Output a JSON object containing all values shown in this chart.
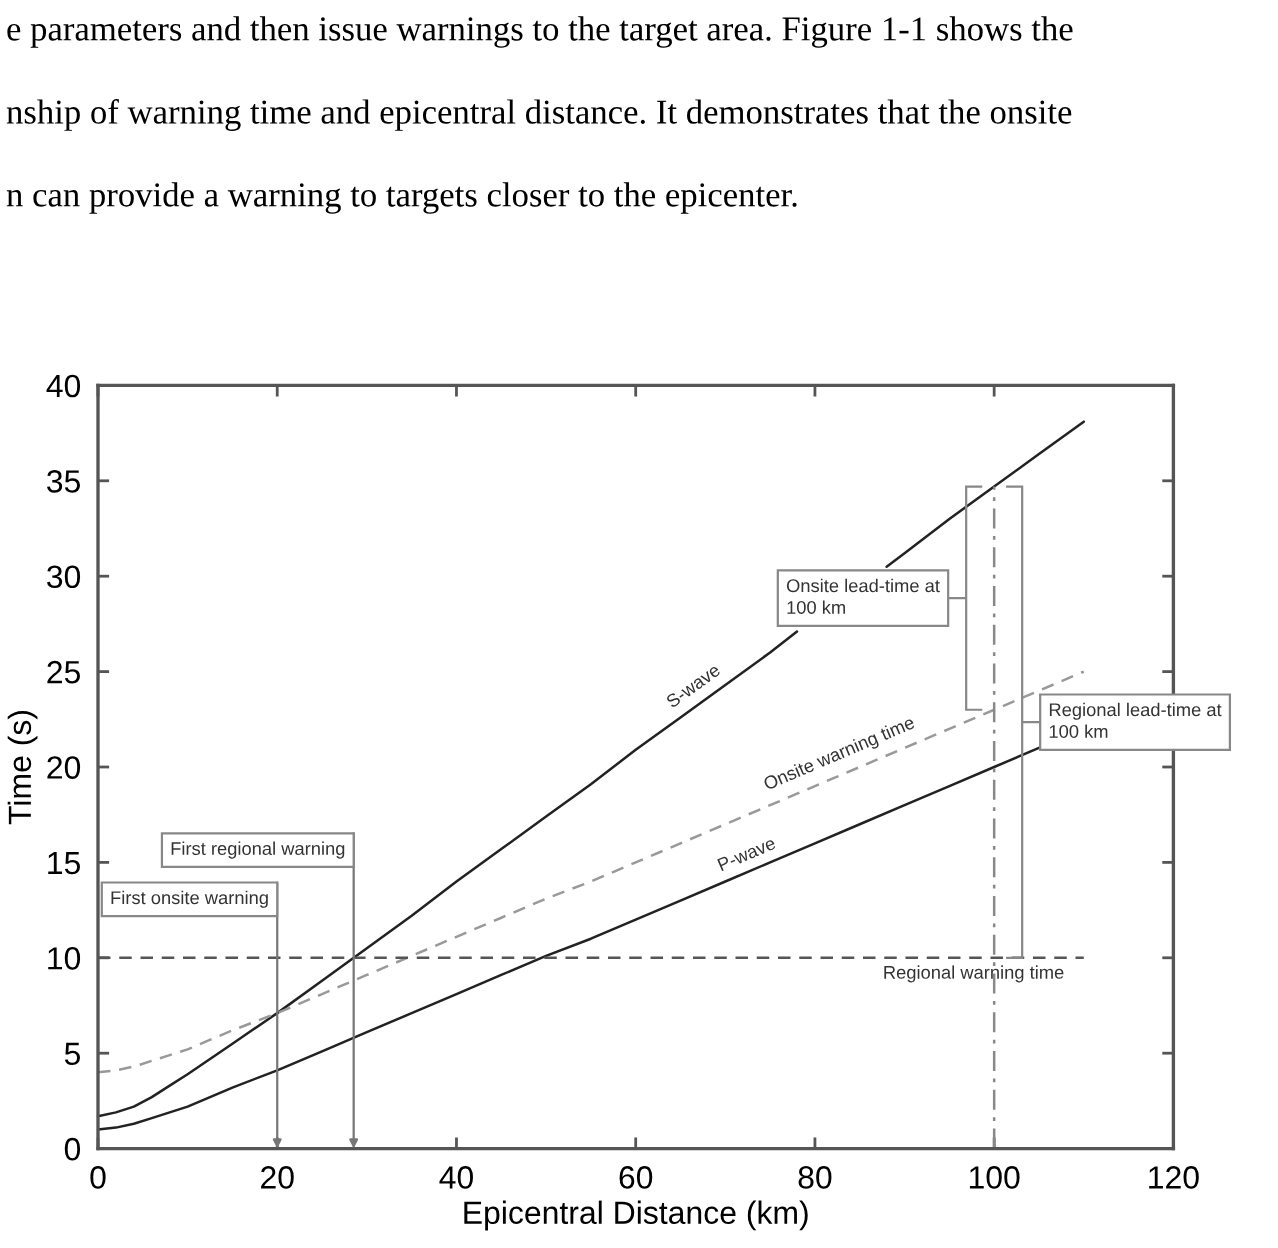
{
  "chart_data": {
    "type": "line",
    "xlabel": "Epicentral Distance (km)",
    "ylabel": "Time (s)",
    "xlim": [
      0,
      120
    ],
    "xticks": [
      0,
      20,
      40,
      60,
      80,
      100,
      120
    ],
    "ylim": [
      0,
      40
    ],
    "yticks": [
      0,
      5,
      10,
      15,
      20,
      25,
      30,
      35,
      40
    ],
    "series": [
      {
        "name": "S-wave",
        "color": "#222222",
        "line_style": "solid",
        "x": [
          0,
          2,
          4,
          6,
          8,
          10,
          15,
          20,
          25,
          30,
          35,
          40,
          45,
          50,
          55,
          60,
          65,
          70,
          75,
          78,
          83,
          88,
          90,
          95,
          100,
          105,
          110
        ],
        "values": [
          1.7,
          1.9,
          2.2,
          2.7,
          3.3,
          3.9,
          5.5,
          7.1,
          8.8,
          10.5,
          12.2,
          14.0,
          15.7,
          17.4,
          19.1,
          20.9,
          22.6,
          24.3,
          26.0,
          27.1,
          null,
          30.5,
          31.2,
          33.0,
          34.7,
          36.4,
          38.1
        ]
      },
      {
        "name": "P-wave",
        "color": "#222222",
        "line_style": "solid",
        "x": [
          0,
          2,
          4,
          6,
          8,
          10,
          15,
          20,
          25,
          30,
          35,
          40,
          45,
          50,
          55,
          60,
          65,
          70,
          75,
          80,
          85,
          90,
          95,
          100,
          105
        ],
        "values": [
          1.0,
          1.1,
          1.3,
          1.6,
          1.9,
          2.2,
          3.2,
          4.1,
          5.1,
          6.1,
          7.1,
          8.1,
          9.1,
          10.1,
          11.0,
          12.0,
          13.0,
          14.0,
          15.0,
          16.0,
          17.0,
          18.0,
          19.0,
          20.0,
          21.0
        ]
      },
      {
        "name": "Onsite warning time",
        "color": "#999999",
        "line_style": "dashed",
        "x": [
          0,
          2,
          4,
          6,
          8,
          10,
          15,
          20,
          25,
          30,
          35,
          40,
          45,
          50,
          55,
          60,
          65,
          70,
          75,
          80,
          85,
          90,
          95,
          100,
          105,
          110
        ],
        "values": [
          4.0,
          4.1,
          4.3,
          4.6,
          4.9,
          5.2,
          6.2,
          7.1,
          8.1,
          9.1,
          10.1,
          11.1,
          12.1,
          13.1,
          14.0,
          15.0,
          16.0,
          17.0,
          18.0,
          19.0,
          20.0,
          21.0,
          22.0,
          23.0,
          24.0,
          25.0
        ]
      },
      {
        "name": "Regional warning time",
        "color": "#555555",
        "line_style": "dashed",
        "x": [
          0,
          110
        ],
        "values": [
          10,
          10
        ]
      },
      {
        "color": "#888888",
        "line_style": "dashdot",
        "x": [
          100,
          100
        ],
        "values": [
          0,
          34.7
        ]
      }
    ],
    "annotations": [
      "e parameters and then issue warnings to the target area. Figure 1-1 shows the",
      "nship of warning time and epicentral distance. It demonstrates that the onsite",
      "n can provide a warning to targets closer to the epicenter.",
      "First onsite warning",
      "First regional warning",
      "Onsite lead-time at\n100 km",
      "Regional lead-time at\n100 km"
    ]
  }
}
